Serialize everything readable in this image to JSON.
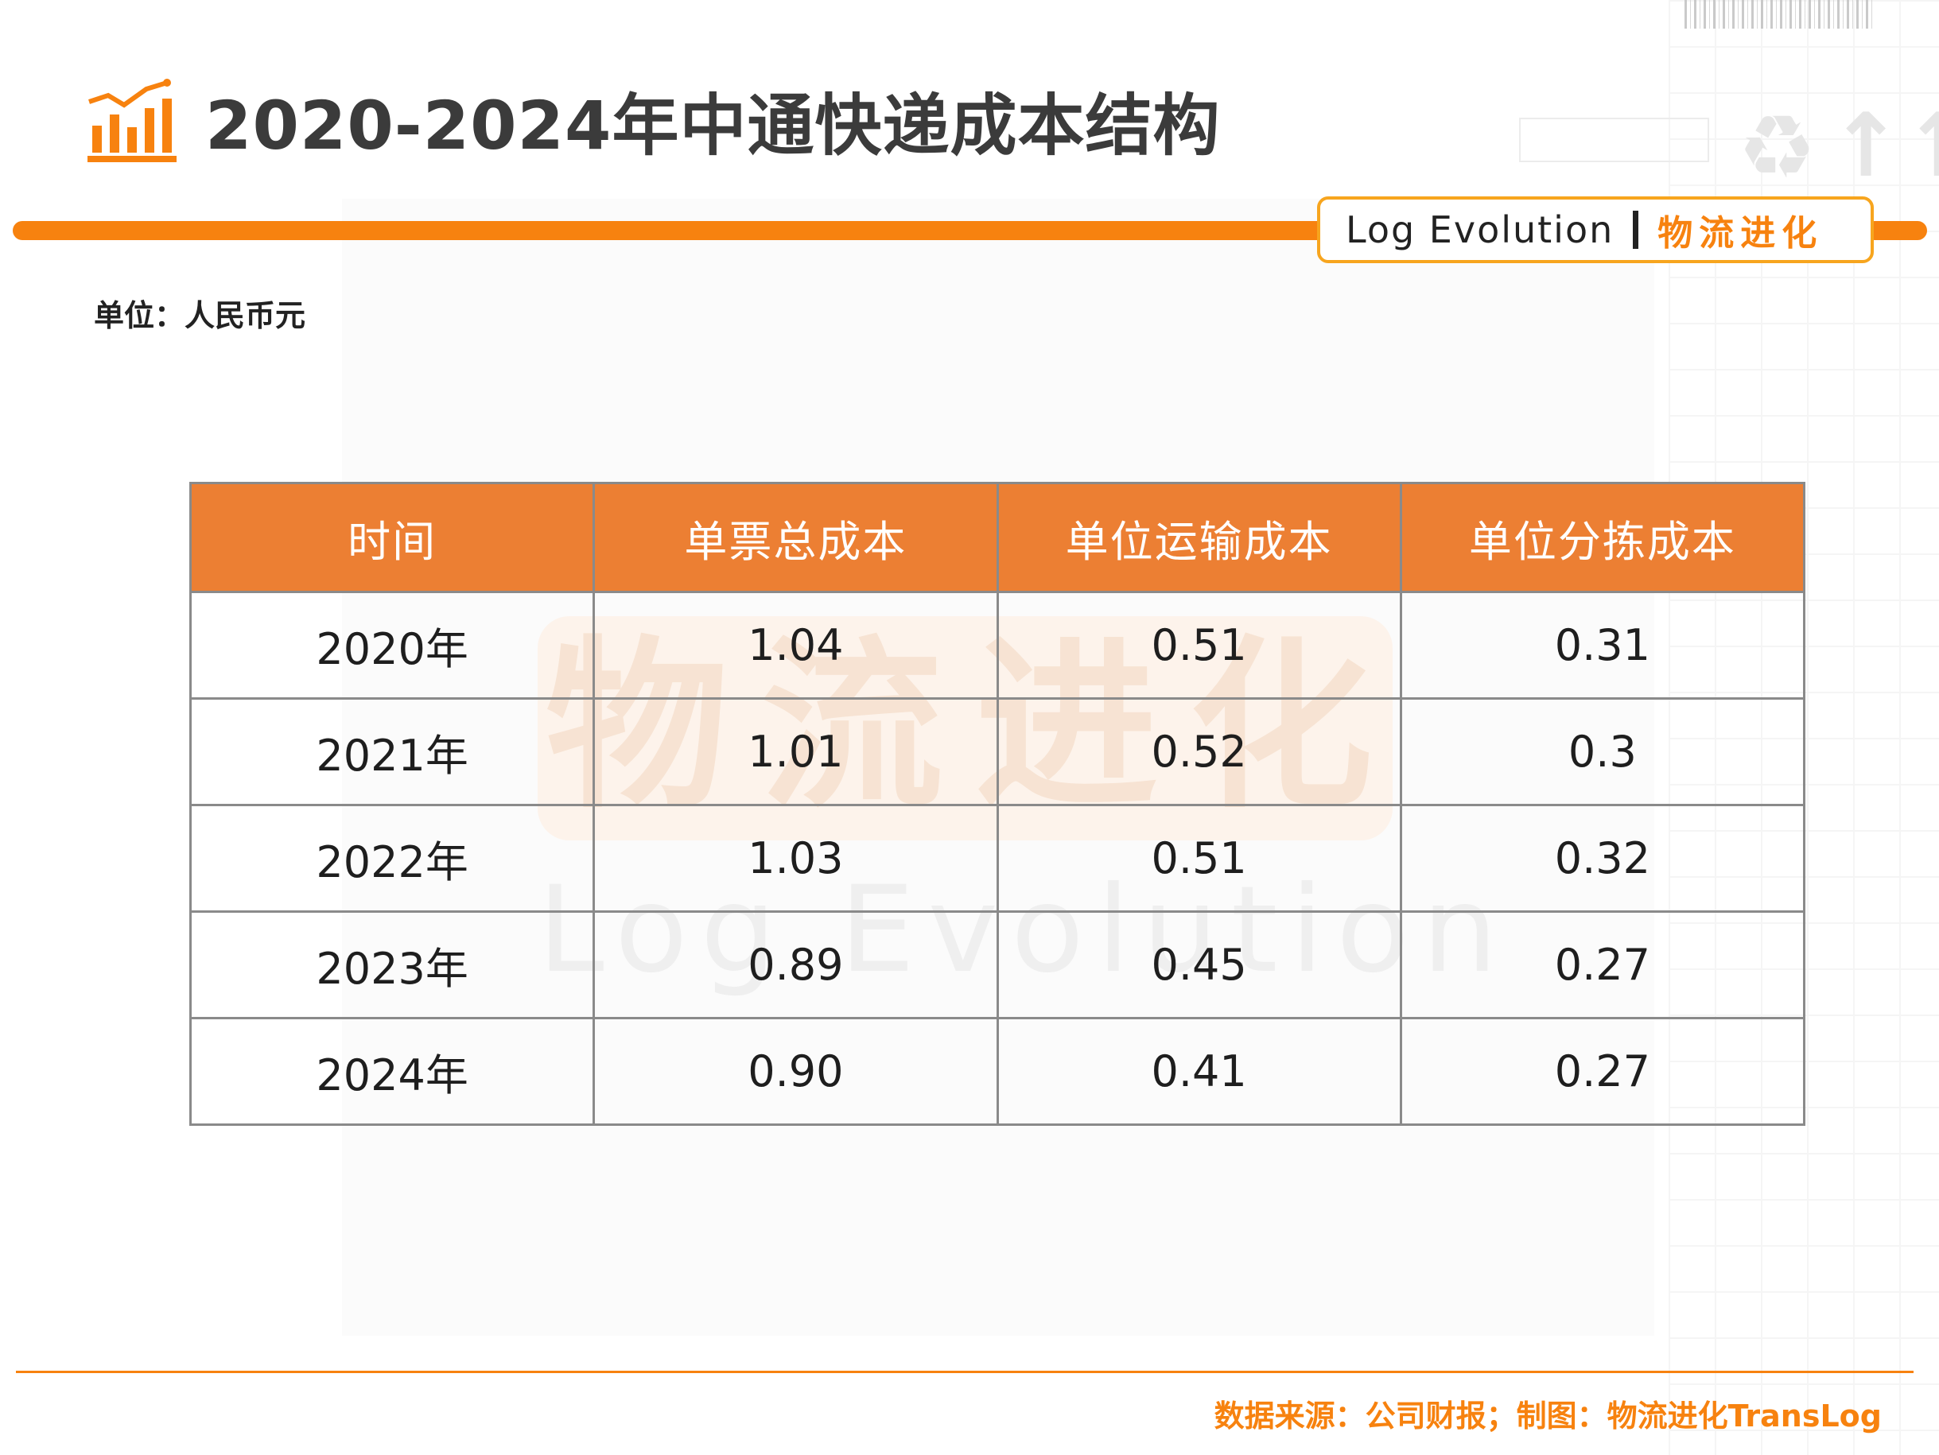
{
  "header": {
    "title": "2020-2024年中通快递成本结构",
    "brand_en": "Log Evolution",
    "brand_cn": "物流进化",
    "accent_color": "#f7820f"
  },
  "unit": "单位：人民币元",
  "watermark": {
    "cn": "物流进化",
    "en": "Log Evolution"
  },
  "table": {
    "columns": [
      "时间",
      "单票总成本",
      "单位运输成本",
      "单位分拣成本"
    ],
    "rows": [
      [
        "2020年",
        "1.04",
        "0.51",
        "0.31"
      ],
      [
        "2021年",
        "1.01",
        "0.52",
        "0.3"
      ],
      [
        "2022年",
        "1.03",
        "0.51",
        "0.32"
      ],
      [
        "2023年",
        "0.89",
        "0.45",
        "0.27"
      ],
      [
        "2024年",
        "0.90",
        "0.41",
        "0.27"
      ]
    ],
    "header_color": "#ec7f33"
  },
  "footer": {
    "source": "数据来源：公司财报；制图：物流进化TransLog"
  },
  "icons": {
    "title_icon": "bar-chart-trend-icon",
    "recycle": "recycle-icon",
    "arrows": "this-way-up-icon"
  }
}
